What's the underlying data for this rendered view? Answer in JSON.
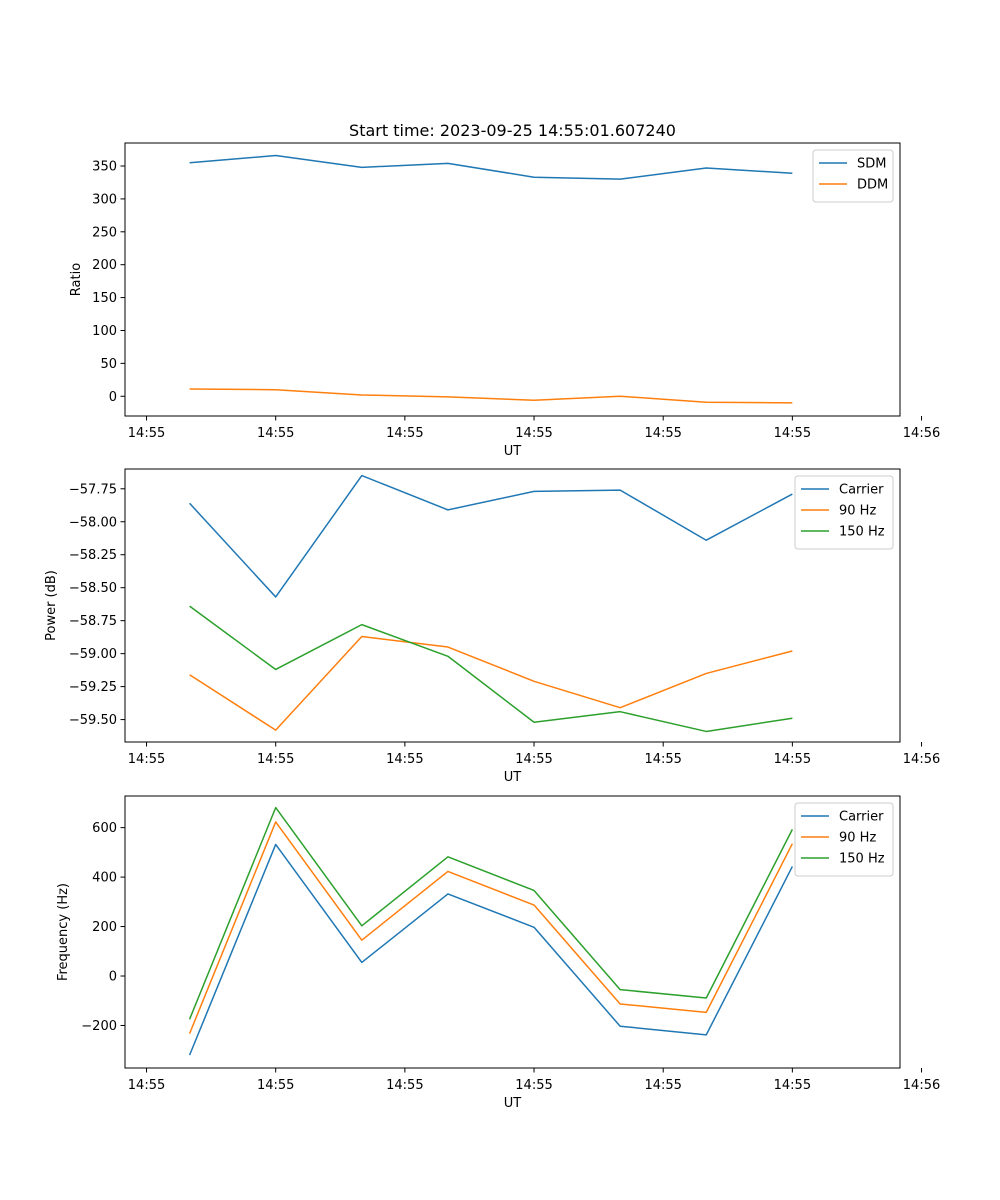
{
  "figure": {
    "title": "Start time: 2023-09-25 14:55:01.607240"
  },
  "chart_data": [
    {
      "type": "line",
      "title": "Start time: 2023-09-25 14:55:01.607240",
      "xlabel": "UT",
      "ylabel": "Ratio",
      "x": [
        1,
        2,
        3,
        4,
        5,
        6,
        7,
        8
      ],
      "xlim": [
        0.25,
        9.25
      ],
      "xticks": [
        0.5,
        2.0,
        3.5,
        5.0,
        6.5,
        8.0,
        9.5
      ],
      "xtick_labels": [
        "14:55",
        "14:55",
        "14:55",
        "14:55",
        "14:55",
        "14:55",
        "14:56"
      ],
      "ylim": [
        -30,
        385
      ],
      "yticks": [
        0,
        50,
        100,
        150,
        200,
        250,
        300,
        350
      ],
      "ytick_labels": [
        "0",
        "50",
        "100",
        "150",
        "200",
        "250",
        "300",
        "350"
      ],
      "legend": "top-right",
      "series": [
        {
          "name": "SDM",
          "color": "#1f77b4",
          "values": [
            355,
            366,
            348,
            354,
            333,
            330,
            347,
            339
          ]
        },
        {
          "name": "DDM",
          "color": "#ff7f0e",
          "values": [
            11,
            10,
            2,
            -1,
            -6,
            0,
            -9,
            -10
          ]
        }
      ]
    },
    {
      "type": "line",
      "xlabel": "UT",
      "ylabel": "Power (dB)",
      "x": [
        1,
        2,
        3,
        4,
        5,
        6,
        7,
        8
      ],
      "xlim": [
        0.25,
        9.25
      ],
      "xticks": [
        0.5,
        2.0,
        3.5,
        5.0,
        6.5,
        8.0,
        9.5
      ],
      "xtick_labels": [
        "14:55",
        "14:55",
        "14:55",
        "14:55",
        "14:55",
        "14:55",
        "14:56"
      ],
      "ylim": [
        -59.67,
        -57.6
      ],
      "yticks": [
        -57.75,
        -58.0,
        -58.25,
        -58.5,
        -58.75,
        -59.0,
        -59.25,
        -59.5
      ],
      "ytick_labels": [
        "−57.75",
        "−58.00",
        "−58.25",
        "−58.50",
        "−58.75",
        "−59.00",
        "−59.25",
        "−59.50"
      ],
      "legend": "top-right",
      "series": [
        {
          "name": "Carrier",
          "color": "#1f77b4",
          "values": [
            -57.86,
            -58.57,
            -57.65,
            -57.91,
            -57.77,
            -57.76,
            -58.14,
            -57.79
          ]
        },
        {
          "name": "90 Hz",
          "color": "#ff7f0e",
          "values": [
            -59.16,
            -59.58,
            -58.87,
            -58.95,
            -59.21,
            -59.41,
            -59.15,
            -58.98
          ]
        },
        {
          "name": "150 Hz",
          "color": "#2ca02c",
          "values": [
            -58.64,
            -59.12,
            -58.78,
            -59.02,
            -59.52,
            -59.44,
            -59.59,
            -59.49
          ]
        }
      ]
    },
    {
      "type": "line",
      "xlabel": "UT",
      "ylabel": "Frequency (Hz)",
      "x": [
        1,
        2,
        3,
        4,
        5,
        6,
        7,
        8
      ],
      "xlim": [
        0.25,
        9.25
      ],
      "xticks": [
        0.5,
        2.0,
        3.5,
        5.0,
        6.5,
        8.0,
        9.5
      ],
      "xtick_labels": [
        "14:55",
        "14:55",
        "14:55",
        "14:55",
        "14:55",
        "14:55",
        "14:56"
      ],
      "ylim": [
        -372,
        728
      ],
      "yticks": [
        -200,
        0,
        200,
        400,
        600
      ],
      "ytick_labels": [
        "−200",
        "0",
        "200",
        "400",
        "600"
      ],
      "legend": "top-right",
      "series": [
        {
          "name": "Carrier",
          "color": "#1f77b4",
          "values": [
            -320,
            532,
            55,
            332,
            197,
            -203,
            -238,
            443
          ]
        },
        {
          "name": "90 Hz",
          "color": "#ff7f0e",
          "values": [
            -233,
            623,
            145,
            423,
            287,
            -113,
            -147,
            535
          ]
        },
        {
          "name": "150 Hz",
          "color": "#2ca02c",
          "values": [
            -175,
            681,
            203,
            482,
            346,
            -55,
            -89,
            593
          ]
        }
      ]
    }
  ]
}
